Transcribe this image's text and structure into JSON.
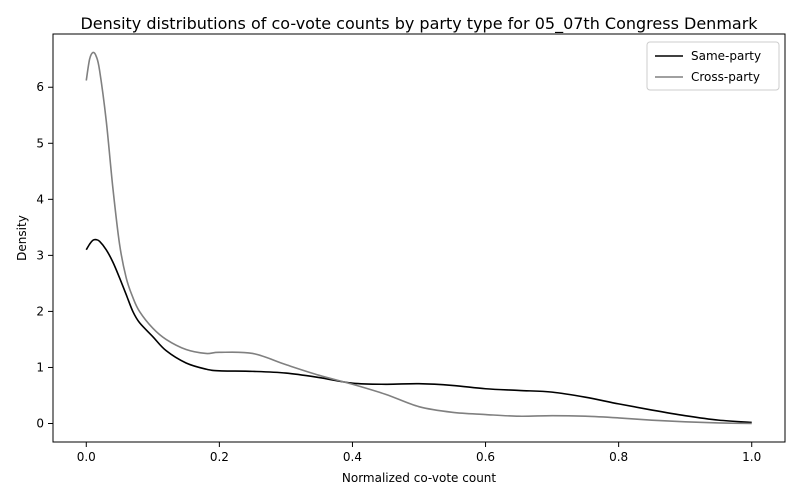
{
  "chart_data": {
    "type": "line",
    "title": "Density distributions of co-vote counts by party type for 05_07th Congress Denmark",
    "xlabel": "Normalized co-vote count",
    "ylabel": "Density",
    "xlim": [
      -0.05,
      1.05
    ],
    "ylim": [
      -0.33,
      6.95
    ],
    "xticks": [
      0.0,
      0.2,
      0.4,
      0.6,
      0.8,
      1.0
    ],
    "xtick_labels": [
      "0.0",
      "0.2",
      "0.4",
      "0.6",
      "0.8",
      "1.0"
    ],
    "yticks": [
      0,
      1,
      2,
      3,
      4,
      5,
      6
    ],
    "ytick_labels": [
      "0",
      "1",
      "2",
      "3",
      "4",
      "5",
      "6"
    ],
    "grid": false,
    "legend_position": "top-right",
    "series": [
      {
        "name": "Same-party",
        "color": "#000000",
        "x": [
          0.0,
          0.005,
          0.01,
          0.015,
          0.02,
          0.03,
          0.04,
          0.05,
          0.06,
          0.07,
          0.08,
          0.1,
          0.12,
          0.15,
          0.18,
          0.2,
          0.25,
          0.3,
          0.35,
          0.4,
          0.45,
          0.5,
          0.55,
          0.6,
          0.65,
          0.7,
          0.75,
          0.8,
          0.85,
          0.9,
          0.95,
          1.0
        ],
        "y": [
          3.1,
          3.2,
          3.27,
          3.28,
          3.25,
          3.1,
          2.88,
          2.6,
          2.3,
          2.0,
          1.8,
          1.55,
          1.3,
          1.08,
          0.97,
          0.94,
          0.93,
          0.9,
          0.82,
          0.72,
          0.7,
          0.71,
          0.68,
          0.62,
          0.59,
          0.56,
          0.47,
          0.35,
          0.24,
          0.14,
          0.06,
          0.02
        ]
      },
      {
        "name": "Cross-party",
        "color": "#808080",
        "x": [
          0.0,
          0.005,
          0.01,
          0.015,
          0.02,
          0.03,
          0.04,
          0.05,
          0.06,
          0.07,
          0.08,
          0.1,
          0.12,
          0.15,
          0.18,
          0.2,
          0.25,
          0.3,
          0.35,
          0.4,
          0.45,
          0.5,
          0.55,
          0.6,
          0.65,
          0.7,
          0.75,
          0.8,
          0.85,
          0.9,
          0.95,
          1.0
        ],
        "y": [
          6.12,
          6.5,
          6.62,
          6.55,
          6.3,
          5.4,
          4.2,
          3.2,
          2.6,
          2.25,
          2.0,
          1.7,
          1.5,
          1.32,
          1.25,
          1.27,
          1.25,
          1.05,
          0.86,
          0.7,
          0.52,
          0.3,
          0.2,
          0.16,
          0.13,
          0.14,
          0.13,
          0.1,
          0.06,
          0.03,
          0.01,
          0.0
        ]
      }
    ]
  }
}
